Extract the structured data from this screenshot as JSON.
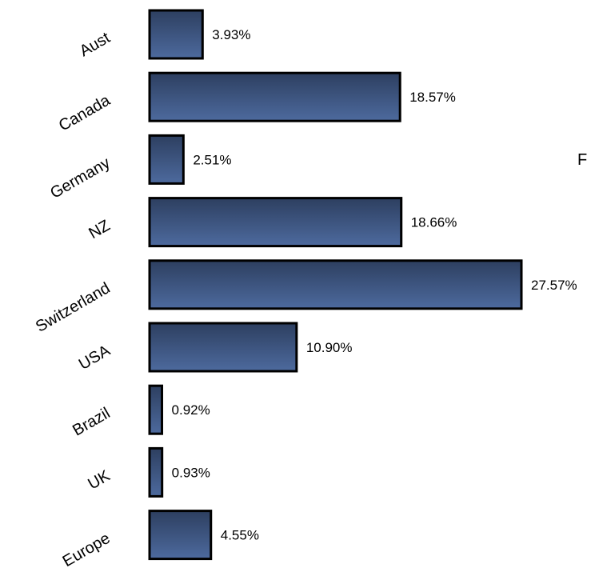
{
  "chart_data": {
    "type": "bar",
    "orientation": "horizontal",
    "categories": [
      "Aust",
      "Canada",
      "Germany",
      "NZ",
      "Switzerland",
      "USA",
      "Brazil",
      "UK",
      "Europe"
    ],
    "values": [
      3.93,
      18.57,
      2.51,
      18.66,
      27.57,
      10.9,
      0.92,
      0.93,
      4.55
    ],
    "value_labels": [
      "3.93%",
      "18.57%",
      "2.51%",
      "18.66%",
      "27.57%",
      "10.90%",
      "0.92%",
      "0.93%",
      "4.55%"
    ],
    "title": "",
    "xlabel": "",
    "ylabel": "",
    "xlim": [
      0,
      27.57
    ],
    "grid": false,
    "legend": "none",
    "unit": "%"
  },
  "stray_text": "F",
  "colors": {
    "bar_fill_top": "#2d3f60",
    "bar_fill_bottom": "#4d6a9e",
    "bar_stroke": "#000000"
  }
}
